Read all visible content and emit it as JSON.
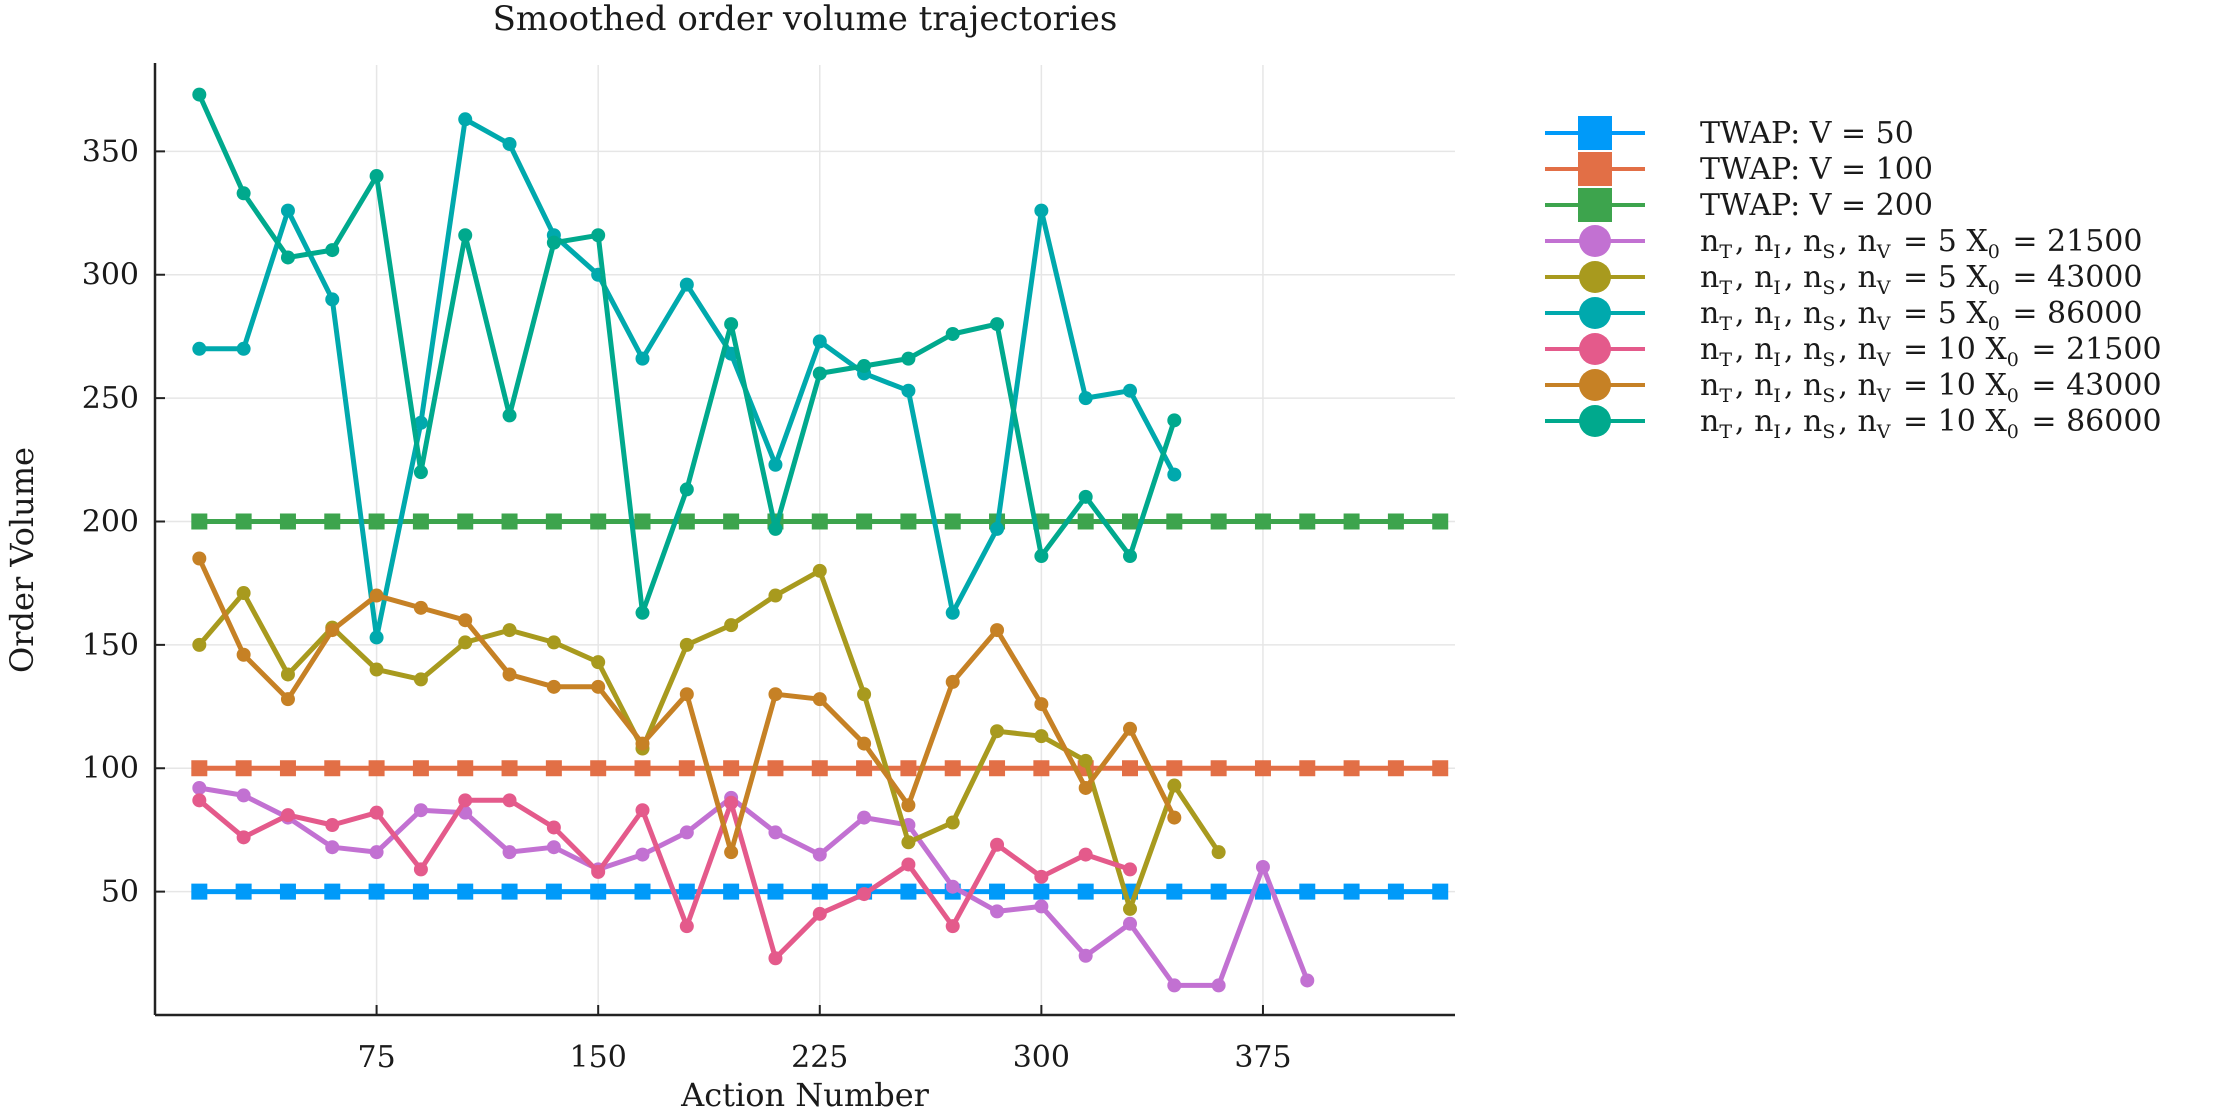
{
  "chart_data": {
    "type": "line",
    "title": "Smoothed order volume trajectories",
    "xlabel": "Action Number",
    "ylabel": "Order Volume",
    "xlim": [
      0,
      440
    ],
    "ylim": [
      0,
      385
    ],
    "xticks": [
      75,
      150,
      225,
      300,
      375
    ],
    "yticks": [
      50,
      100,
      150,
      200,
      250,
      300,
      350
    ],
    "grid": true,
    "legend_position": "outside-right",
    "series": [
      {
        "name": "TWAP: V = 50",
        "legend_text": "TWAP: V = 50",
        "color": "#009af9",
        "marker": "square",
        "x": [
          15,
          30,
          45,
          60,
          75,
          90,
          105,
          120,
          135,
          150,
          165,
          180,
          195,
          210,
          225,
          240,
          255,
          270,
          285,
          300,
          315,
          330,
          345,
          360,
          375,
          390,
          405,
          420,
          435
        ],
        "y": [
          50,
          50,
          50,
          50,
          50,
          50,
          50,
          50,
          50,
          50,
          50,
          50,
          50,
          50,
          50,
          50,
          50,
          50,
          50,
          50,
          50,
          50,
          50,
          50,
          50,
          50,
          50,
          50,
          50
        ]
      },
      {
        "name": "TWAP: V = 100",
        "legend_text": "TWAP: V = 100",
        "color": "#e26f46",
        "marker": "square",
        "x": [
          15,
          30,
          45,
          60,
          75,
          90,
          105,
          120,
          135,
          150,
          165,
          180,
          195,
          210,
          225,
          240,
          255,
          270,
          285,
          300,
          315,
          330,
          345,
          360,
          375,
          390,
          405,
          420,
          435
        ],
        "y": [
          100,
          100,
          100,
          100,
          100,
          100,
          100,
          100,
          100,
          100,
          100,
          100,
          100,
          100,
          100,
          100,
          100,
          100,
          100,
          100,
          100,
          100,
          100,
          100,
          100,
          100,
          100,
          100,
          100
        ]
      },
      {
        "name": "TWAP: V = 200",
        "legend_text": "TWAP: V = 200",
        "color": "#3da44d",
        "marker": "square",
        "x": [
          15,
          30,
          45,
          60,
          75,
          90,
          105,
          120,
          135,
          150,
          165,
          180,
          195,
          210,
          225,
          240,
          255,
          270,
          285,
          300,
          315,
          330,
          345,
          360,
          375,
          390,
          405,
          420,
          435
        ],
        "y": [
          200,
          200,
          200,
          200,
          200,
          200,
          200,
          200,
          200,
          200,
          200,
          200,
          200,
          200,
          200,
          200,
          200,
          200,
          200,
          200,
          200,
          200,
          200,
          200,
          200,
          200,
          200,
          200,
          200
        ]
      },
      {
        "name": "nT, nI, nS, nV = 5 X0 = 21500",
        "legend_text": "nT, nI, nS, nV = 5  X0 = 21500",
        "color": "#c271d2",
        "marker": "circle",
        "x": [
          15,
          30,
          45,
          60,
          75,
          90,
          105,
          120,
          135,
          150,
          165,
          180,
          195,
          210,
          225,
          240,
          255,
          270,
          285,
          300,
          315,
          330,
          345,
          360,
          375,
          390
        ],
        "y": [
          92,
          89,
          80,
          68,
          66,
          83,
          82,
          66,
          68,
          59,
          65,
          74,
          88,
          74,
          65,
          80,
          77,
          52,
          42,
          44,
          24,
          37,
          12,
          12,
          60,
          14
        ]
      },
      {
        "name": "nT, nI, nS, nV = 5 X0 = 43000",
        "legend_text": "nT, nI, nS, nV = 5  X0 = 43000",
        "color": "#a89a1e",
        "marker": "circle",
        "x": [
          15,
          30,
          45,
          60,
          75,
          90,
          105,
          120,
          135,
          150,
          165,
          180,
          195,
          210,
          225,
          240,
          255,
          270,
          285,
          300,
          315,
          330,
          345,
          360
        ],
        "y": [
          150,
          171,
          138,
          157,
          140,
          136,
          151,
          156,
          151,
          143,
          108,
          150,
          158,
          170,
          180,
          130,
          70,
          78,
          115,
          113,
          103,
          43,
          93,
          66
        ]
      },
      {
        "name": "nT, nI, nS, nV = 5 X0 = 86000",
        "legend_text": "nT, nI, nS, nV = 5  X0 = 86000",
        "color": "#00a9ad",
        "marker": "circle",
        "x": [
          15,
          30,
          45,
          60,
          75,
          90,
          105,
          120,
          135,
          150,
          165,
          180,
          195,
          210,
          225,
          240,
          255,
          270,
          285,
          300,
          315,
          330,
          345
        ],
        "y": [
          270,
          270,
          326,
          290,
          153,
          240,
          363,
          353,
          316,
          300,
          266,
          296,
          268,
          223,
          273,
          260,
          253,
          163,
          197,
          326,
          250,
          253,
          219
        ]
      },
      {
        "name": "nT, nI, nS, nV = 10 X0 = 21500",
        "legend_text": "nT, nI, nS, nV = 10  X0 = 21500",
        "color": "#e45a8b",
        "marker": "circle",
        "x": [
          15,
          30,
          45,
          60,
          75,
          90,
          105,
          120,
          135,
          150,
          165,
          180,
          195,
          210,
          225,
          240,
          255,
          270,
          285,
          300,
          315,
          330
        ],
        "y": [
          87,
          72,
          81,
          77,
          82,
          59,
          87,
          87,
          76,
          58,
          83,
          36,
          86,
          23,
          41,
          49,
          61,
          36,
          69,
          56,
          65,
          59
        ]
      },
      {
        "name": "nT, nI, nS, nV = 10 X0 = 43000",
        "legend_text": "nT, nI, nS, nV = 10  X0 = 43000",
        "color": "#c68125",
        "marker": "circle",
        "x": [
          15,
          30,
          45,
          60,
          75,
          90,
          105,
          120,
          135,
          150,
          165,
          180,
          195,
          210,
          225,
          240,
          255,
          270,
          285,
          300,
          315,
          330,
          345
        ],
        "y": [
          185,
          146,
          128,
          156,
          170,
          165,
          160,
          138,
          133,
          133,
          110,
          130,
          66,
          130,
          128,
          110,
          85,
          135,
          156,
          126,
          92,
          116,
          80
        ]
      },
      {
        "name": "nT, nI, nS, nV = 10 X0 = 86000",
        "legend_text": "nT, nI, nS, nV = 10  X0 = 86000",
        "color": "#00a98d",
        "marker": "circle",
        "x": [
          15,
          30,
          45,
          60,
          75,
          90,
          105,
          120,
          135,
          150,
          165,
          180,
          195,
          210,
          225,
          240,
          255,
          270,
          285,
          300,
          315,
          330,
          345
        ],
        "y": [
          373,
          333,
          307,
          310,
          340,
          220,
          316,
          243,
          313,
          316,
          163,
          213,
          280,
          197,
          260,
          263,
          266,
          276,
          280,
          186,
          210,
          186,
          241
        ]
      }
    ]
  }
}
